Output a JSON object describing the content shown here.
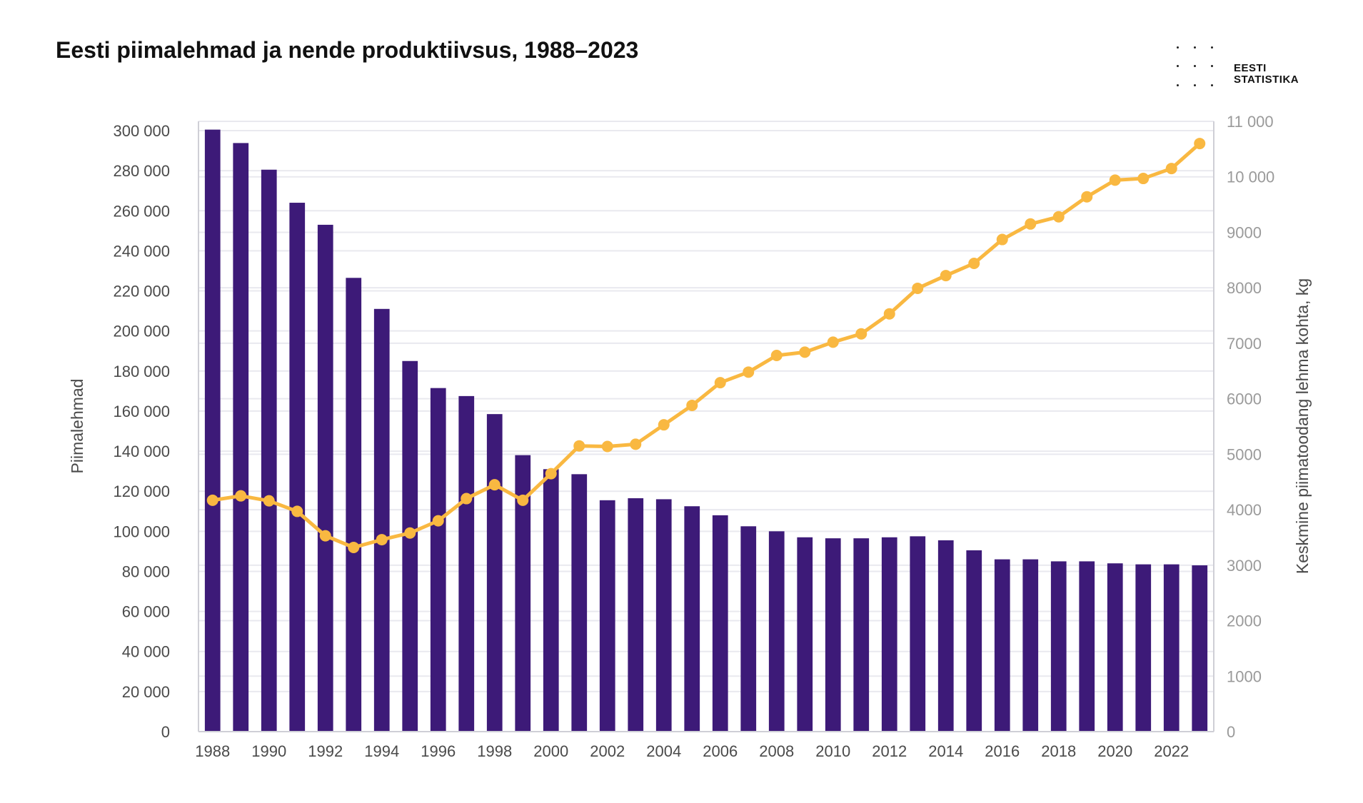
{
  "header": {
    "title": "Eesti piimalehmad ja nende produktiivsus, 1988–2023"
  },
  "logo": {
    "line1": "EESTI",
    "line2": "STATISTIKA"
  },
  "colors": {
    "bars": "#3d1a78",
    "line": "#f9b841",
    "grid": "#e9e9ef",
    "axis": "#cfcfd6"
  },
  "chart_data": {
    "type": "bar",
    "title": "Eesti piimalehmad ja nende produktiivsus, 1988–2023",
    "categories": [
      "1988",
      "1989",
      "1990",
      "1991",
      "1992",
      "1993",
      "1994",
      "1995",
      "1996",
      "1997",
      "1998",
      "1999",
      "2000",
      "2001",
      "2002",
      "2003",
      "2004",
      "2005",
      "2006",
      "2007",
      "2008",
      "2009",
      "2010",
      "2011",
      "2012",
      "2013",
      "2014",
      "2015",
      "2016",
      "2017",
      "2018",
      "2019",
      "2020",
      "2021",
      "2022",
      "2023"
    ],
    "x_tick_labels": [
      "1988",
      "1990",
      "1992",
      "1994",
      "1996",
      "1998",
      "2000",
      "2002",
      "2004",
      "2006",
      "2008",
      "2010",
      "2012",
      "2014",
      "2016",
      "2018",
      "2020",
      "2022"
    ],
    "series": [
      {
        "name": "Piimalehmad",
        "type": "bar",
        "axis": "left",
        "values": [
          300500,
          293800,
          280500,
          264000,
          253000,
          226500,
          211000,
          185000,
          171500,
          167500,
          158500,
          138000,
          131000,
          128500,
          115500,
          116500,
          116000,
          112500,
          108000,
          102500,
          100000,
          97000,
          96500,
          96500,
          97000,
          97500,
          95500,
          90500,
          86000,
          86000,
          85000,
          85000,
          84000,
          83500,
          83500,
          83000
        ]
      },
      {
        "name": "Keskmine piimatoodang lehma kohta, kg",
        "type": "line",
        "axis": "right",
        "values": [
          4170,
          4250,
          4160,
          3970,
          3530,
          3320,
          3460,
          3580,
          3800,
          4200,
          4450,
          4170,
          4650,
          5150,
          5140,
          5180,
          5530,
          5880,
          6290,
          6480,
          6780,
          6840,
          7020,
          7170,
          7530,
          7990,
          8220,
          8440,
          8870,
          9150,
          9280,
          9640,
          9940,
          9970,
          10150,
          10600
        ]
      }
    ],
    "y_left": {
      "label": "Piimalehmad",
      "range": [
        0,
        300000
      ],
      "ticks": [
        0,
        20000,
        40000,
        60000,
        80000,
        100000,
        120000,
        140000,
        160000,
        180000,
        200000,
        220000,
        240000,
        260000,
        280000,
        300000
      ],
      "tick_labels": [
        "0",
        "20 000",
        "40 000",
        "60 000",
        "80 000",
        "100 000",
        "120 000",
        "140 000",
        "160 000",
        "180 000",
        "200 000",
        "220 000",
        "240 000",
        "260 000",
        "280 000",
        "300 000"
      ]
    },
    "y_right": {
      "label": "Keskmine piimatoodang lehma kohta, kg",
      "range": [
        0,
        11000
      ],
      "ticks": [
        0,
        1000,
        2000,
        3000,
        4000,
        5000,
        6000,
        7000,
        8000,
        9000,
        10000,
        11000
      ],
      "tick_labels": [
        "0",
        "1000",
        "2000",
        "3000",
        "4000",
        "5000",
        "6000",
        "7000",
        "8000",
        "9000",
        "10 000",
        "11 000"
      ]
    },
    "grid": true
  }
}
